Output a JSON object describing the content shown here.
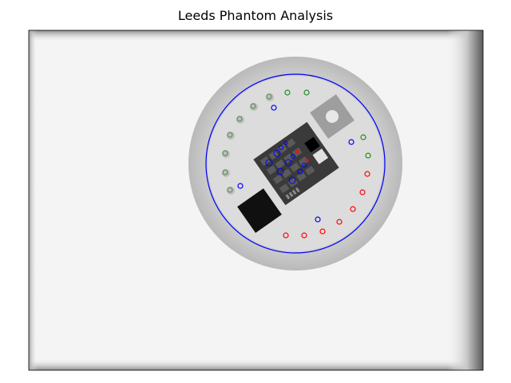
{
  "figure": {
    "title": "Leeds Phantom Analysis"
  },
  "image": {
    "subject": "Leeds TOR radiographic test phantom",
    "background": "#f3f3f3",
    "phantom_ring_color": "#bdbdbd",
    "phantom_disc_color": "#dadada"
  },
  "overlay": {
    "boundary_circle_color": "#0000ff",
    "high_contrast_roi_color": "#228b22",
    "low_contrast_roi_color": "#ff0000",
    "background_roi_color": "#0000ff",
    "high_contrast_roi_count": 10,
    "low_contrast_roi_count": 8,
    "background_roi_count": 4
  },
  "colors": {
    "axes_frame": "#000000"
  }
}
